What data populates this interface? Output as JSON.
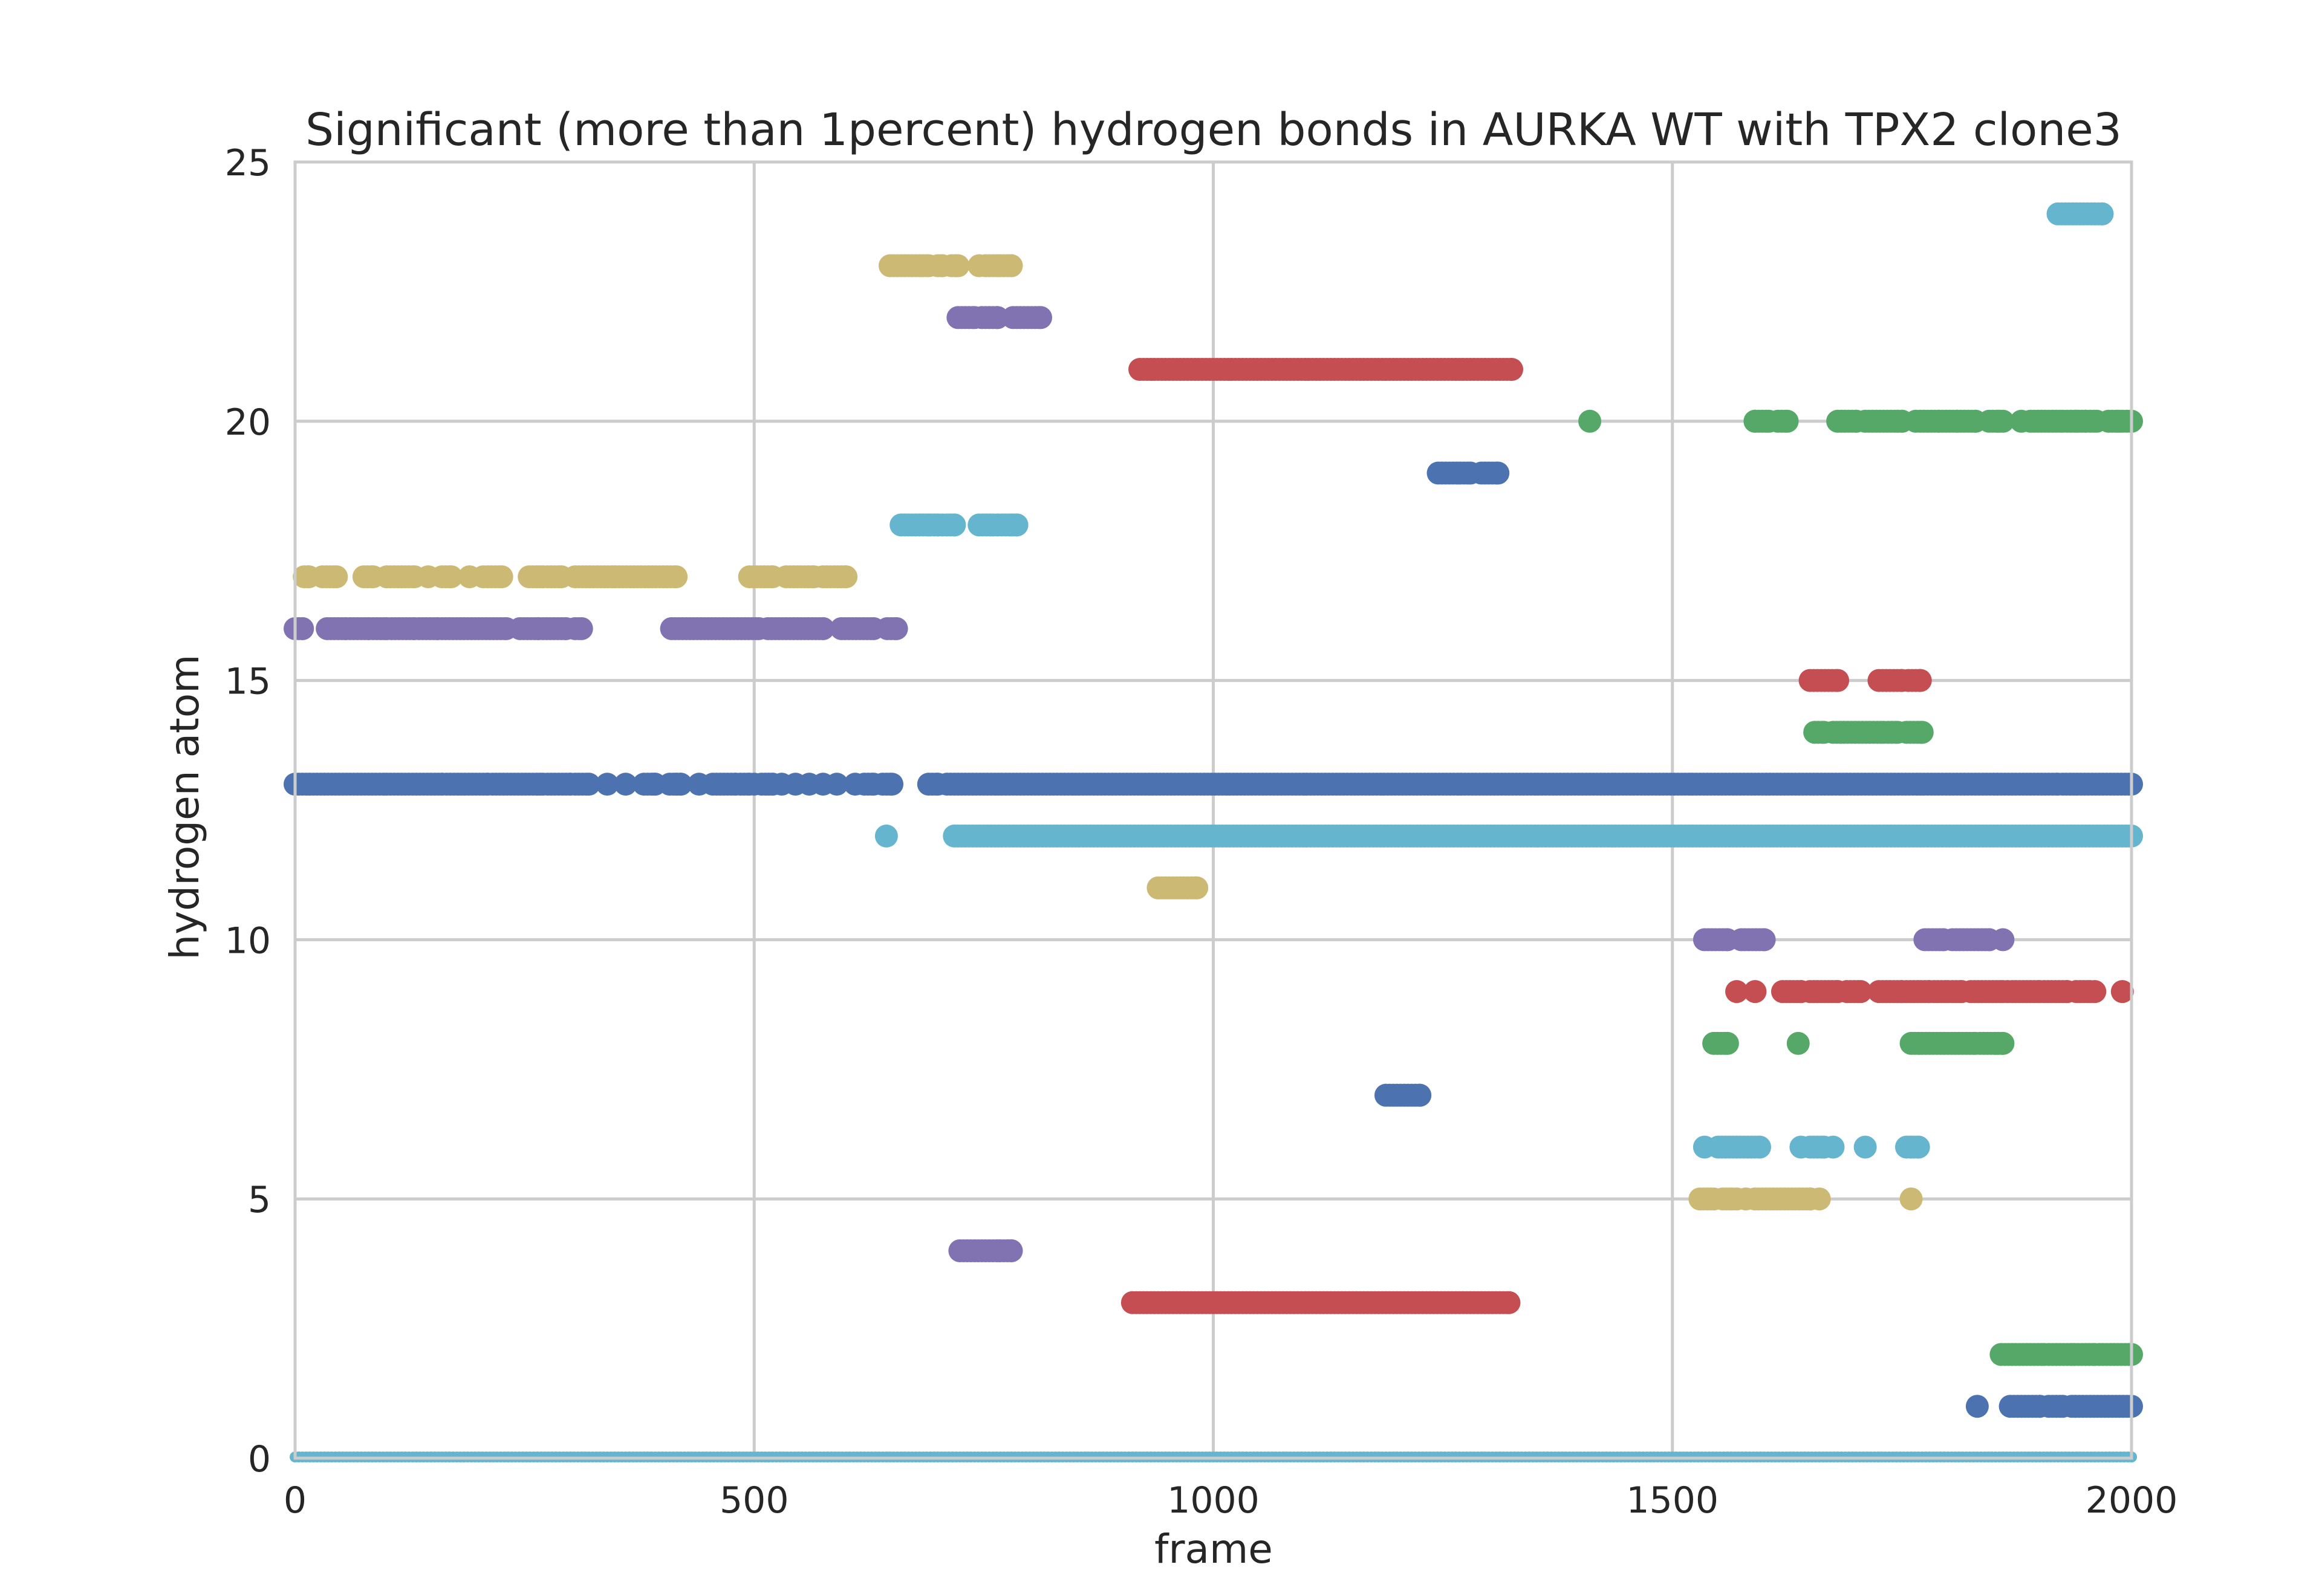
{
  "chart_data": {
    "type": "scatter",
    "title": "Significant (more than 1percent) hydrogen bonds in AURKA WT with TPX2 clone3",
    "xlabel": "frame",
    "ylabel": "hydrogen atom",
    "xlim": [
      0,
      2000
    ],
    "ylim": [
      0,
      25
    ],
    "xticks": [
      "0",
      "500",
      "1000",
      "1500",
      "2000"
    ],
    "yticks": [
      "0",
      "5",
      "10",
      "15",
      "20",
      "25"
    ],
    "grid": true,
    "legend": "none",
    "colors": {
      "blue": "#4c72b0",
      "green": "#55a868",
      "red": "#c44e52",
      "purple": "#8172b2",
      "khaki": "#ccb974",
      "cyan": "#64b5cd"
    },
    "series": [
      {
        "y": 0,
        "color": "cyan",
        "points": [],
        "segments": [
          [
            0,
            2000
          ]
        ]
      },
      {
        "y": 1,
        "color": "blue",
        "points": [
          1832
        ],
        "segments": [
          [
            1868,
            1900
          ],
          [
            1910,
            1925
          ],
          [
            1935,
            2000
          ]
        ]
      },
      {
        "y": 2,
        "color": "green",
        "points": [],
        "segments": [
          [
            1858,
            1905
          ],
          [
            1910,
            1960
          ],
          [
            1965,
            2000
          ]
        ]
      },
      {
        "y": 3,
        "color": "red",
        "points": [],
        "segments": [
          [
            912,
            1322
          ]
        ]
      },
      {
        "y": 4,
        "color": "purple",
        "points": [],
        "segments": [
          [
            724,
            780
          ]
        ]
      },
      {
        "y": 5,
        "color": "khaki",
        "points": [
          1570,
          1580,
          1660,
          1760
        ],
        "segments": [
          [
            1530,
            1545
          ],
          [
            1555,
            1565
          ],
          [
            1590,
            1650
          ]
        ]
      },
      {
        "y": 6,
        "color": "cyan",
        "points": [
          1535,
          1640,
          1675,
          1710,
          1760
        ],
        "segments": [
          [
            1550,
            1595
          ],
          [
            1650,
            1665
          ],
          [
            1755,
            1768
          ]
        ]
      },
      {
        "y": 7,
        "color": "blue",
        "points": [],
        "segments": [
          [
            1188,
            1225
          ]
        ]
      },
      {
        "y": 8,
        "color": "green",
        "points": [
          1637
        ],
        "segments": [
          [
            1545,
            1560
          ],
          [
            1760,
            1830
          ],
          [
            1835,
            1860
          ]
        ]
      },
      {
        "y": 9,
        "color": "red",
        "points": [
          1570,
          1590,
          1865,
          1960,
          1990
        ],
        "segments": [
          [
            1620,
            1640
          ],
          [
            1650,
            1680
          ],
          [
            1690,
            1705
          ],
          [
            1725,
            1750
          ],
          [
            1755,
            1780
          ],
          [
            1785,
            1800
          ],
          [
            1805,
            1815
          ],
          [
            1825,
            1860
          ],
          [
            1870,
            1900
          ],
          [
            1905,
            1930
          ],
          [
            1940,
            1955
          ]
        ]
      },
      {
        "y": 10,
        "color": "purple",
        "points": [
          1860
        ],
        "segments": [
          [
            1535,
            1560
          ],
          [
            1575,
            1600
          ],
          [
            1775,
            1795
          ],
          [
            1805,
            1845
          ]
        ]
      },
      {
        "y": 11,
        "color": "khaki",
        "points": [],
        "segments": [
          [
            940,
            982
          ]
        ]
      },
      {
        "y": 12,
        "color": "cyan",
        "points": [
          644
        ],
        "segments": [
          [
            718,
            2000
          ]
        ]
      },
      {
        "y": 13,
        "color": "blue",
        "points": [
          340,
          360,
          390,
          415,
          440,
          500,
          530,
          545,
          560,
          575,
          590,
          610
        ],
        "segments": [
          [
            0,
            160
          ],
          [
            165,
            210
          ],
          [
            215,
            270
          ],
          [
            275,
            300
          ],
          [
            305,
            320
          ],
          [
            380,
            392
          ],
          [
            408,
            420
          ],
          [
            455,
            480
          ],
          [
            485,
            495
          ],
          [
            508,
            520
          ],
          [
            620,
            630
          ],
          [
            640,
            650
          ],
          [
            690,
            700
          ],
          [
            710,
            1920
          ],
          [
            1925,
            2000
          ]
        ]
      },
      {
        "y": 14,
        "color": "green",
        "points": [],
        "segments": [
          [
            1655,
            1665
          ],
          [
            1675,
            1730
          ],
          [
            1735,
            1745
          ],
          [
            1755,
            1772
          ]
        ]
      },
      {
        "y": 15,
        "color": "red",
        "points": [],
        "segments": [
          [
            1650,
            1680
          ],
          [
            1725,
            1750
          ],
          [
            1757,
            1770
          ]
        ]
      },
      {
        "y": 16,
        "color": "purple",
        "points": [],
        "segments": [
          [
            0,
            8
          ],
          [
            35,
            55
          ],
          [
            60,
            80
          ],
          [
            85,
            100
          ],
          [
            105,
            130
          ],
          [
            135,
            155
          ],
          [
            160,
            230
          ],
          [
            245,
            265
          ],
          [
            270,
            295
          ],
          [
            305,
            312
          ],
          [
            410,
            505
          ],
          [
            515,
            575
          ],
          [
            595,
            630
          ],
          [
            645,
            655
          ]
        ]
      },
      {
        "y": 17,
        "color": "khaki",
        "points": [
          145,
          190,
          205
        ],
        "segments": [
          [
            10,
            15
          ],
          [
            30,
            45
          ],
          [
            75,
            85
          ],
          [
            100,
            130
          ],
          [
            160,
            170
          ],
          [
            210,
            225
          ],
          [
            255,
            270
          ],
          [
            275,
            290
          ],
          [
            305,
            415
          ],
          [
            495,
            520
          ],
          [
            535,
            565
          ],
          [
            575,
            600
          ]
        ]
      },
      {
        "y": 18,
        "color": "cyan",
        "points": [
          690,
          705,
          765,
          780
        ],
        "segments": [
          [
            660,
            700
          ],
          [
            710,
            718
          ],
          [
            745,
            760
          ],
          [
            770,
            786
          ]
        ]
      },
      {
        "y": 19,
        "color": "blue",
        "points": [],
        "segments": [
          [
            1245,
            1280
          ],
          [
            1292,
            1310
          ]
        ]
      },
      {
        "y": 20,
        "color": "green",
        "points": [
          1410,
          1590,
          1745,
          1765,
          1790,
          1810,
          1855,
          1880,
          1940,
          1985
        ],
        "segments": [
          [
            1590,
            1605
          ],
          [
            1615,
            1625
          ],
          [
            1680,
            1700
          ],
          [
            1710,
            1750
          ],
          [
            1770,
            1830
          ],
          [
            1845,
            1860
          ],
          [
            1890,
            1925
          ],
          [
            1930,
            1950
          ],
          [
            1955,
            1962
          ],
          [
            1975,
            1990
          ],
          [
            1995,
            2000
          ]
        ]
      },
      {
        "y": 21,
        "color": "red",
        "points": [],
        "segments": [
          [
            920,
            1325
          ]
        ]
      },
      {
        "y": 22,
        "color": "purple",
        "points": [],
        "segments": [
          [
            722,
            740
          ],
          [
            748,
            765
          ],
          [
            782,
            812
          ]
        ]
      },
      {
        "y": 23,
        "color": "khaki",
        "points": [
          720,
          745
        ],
        "segments": [
          [
            648,
            690
          ],
          [
            700,
            705
          ],
          [
            715,
            722
          ],
          [
            752,
            780
          ]
        ]
      },
      {
        "y": 24,
        "color": "cyan",
        "points": [],
        "segments": [
          [
            1920,
            1968
          ]
        ]
      }
    ]
  }
}
